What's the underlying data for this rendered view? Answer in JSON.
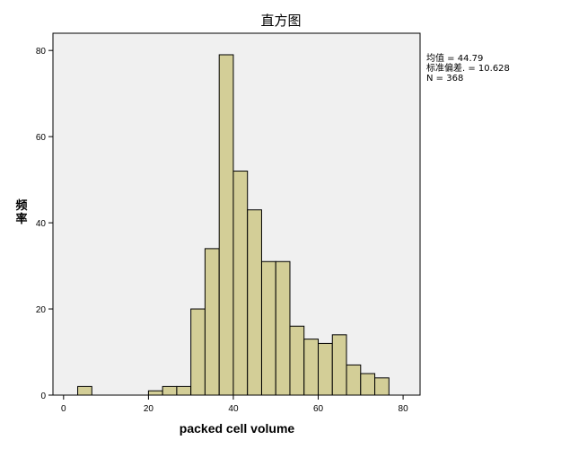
{
  "chart_data": {
    "type": "bar",
    "subtype": "histogram",
    "title": "直方图",
    "xlabel": "packed cell volume",
    "ylabel_chars": [
      "频",
      "率"
    ],
    "xlim": [
      -2.5,
      84
    ],
    "ylim": [
      0,
      84
    ],
    "xticks": [
      0,
      20,
      40,
      60,
      80
    ],
    "yticks": [
      0,
      20,
      40,
      60,
      80
    ],
    "bin_width": 3.33,
    "bins": [
      {
        "x0": 3.33,
        "count": 2
      },
      {
        "x0": 20.0,
        "count": 1
      },
      {
        "x0": 23.33,
        "count": 2
      },
      {
        "x0": 26.67,
        "count": 2
      },
      {
        "x0": 30.0,
        "count": 20
      },
      {
        "x0": 33.33,
        "count": 34
      },
      {
        "x0": 36.67,
        "count": 79
      },
      {
        "x0": 40.0,
        "count": 52
      },
      {
        "x0": 43.33,
        "count": 43
      },
      {
        "x0": 46.67,
        "count": 31
      },
      {
        "x0": 50.0,
        "count": 31
      },
      {
        "x0": 53.33,
        "count": 16
      },
      {
        "x0": 56.67,
        "count": 13
      },
      {
        "x0": 60.0,
        "count": 12
      },
      {
        "x0": 63.33,
        "count": 14
      },
      {
        "x0": 66.67,
        "count": 7
      },
      {
        "x0": 70.0,
        "count": 5
      },
      {
        "x0": 73.33,
        "count": 4
      }
    ],
    "stats": {
      "mean": "均值 = 44.79",
      "sd": "标准偏差. = 10.628",
      "n": "N = 368"
    },
    "colors": {
      "bar_fill": "#d3ce97",
      "plot_background": "#f0f0f0"
    },
    "grid": false
  }
}
